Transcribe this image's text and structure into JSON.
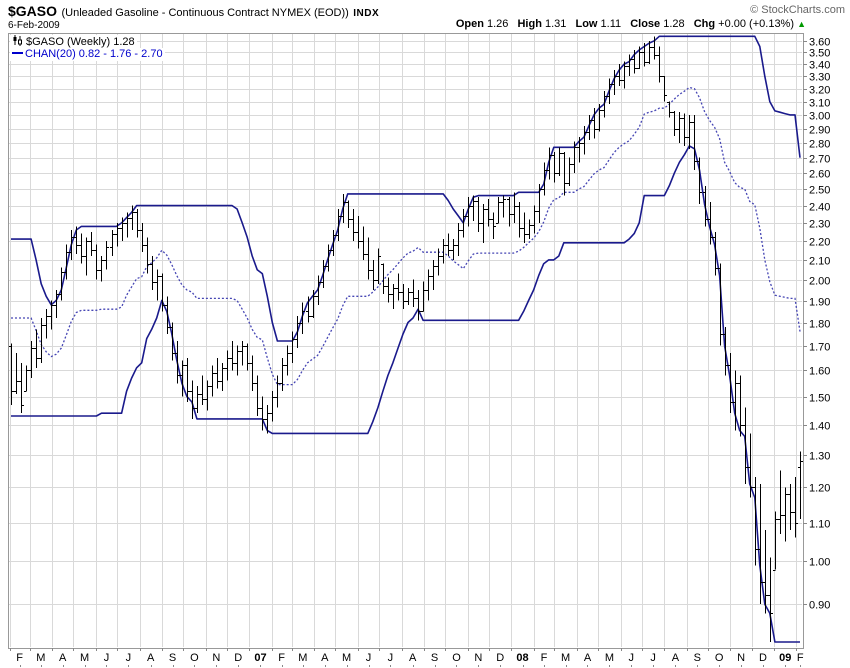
{
  "header": {
    "symbol": "$GASO",
    "desc": "(Unleaded Gasoline - Continuous Contract NYMEX (EOD))",
    "index": "INDX",
    "copyright": "© StockCharts.com",
    "date": "6-Feb-2009"
  },
  "quote": {
    "items": [
      {
        "label": "Open",
        "value": "1.26"
      },
      {
        "label": "High",
        "value": "1.31"
      },
      {
        "label": "Low",
        "value": "1.11"
      },
      {
        "label": "Close",
        "value": "1.28"
      },
      {
        "label": "Chg",
        "value": "+0.00 (+0.13%)"
      }
    ],
    "arrow": "▲",
    "arrow_color": "#009900"
  },
  "legend": {
    "series": "$GASO (Weekly) 1.28",
    "channel": "CHAN(20) 0.82 - 1.76 - 2.70",
    "channel_color": "#0000cc"
  },
  "chart_data": {
    "type": "ohlc-bar",
    "title": "$GASO (Unleaded Gasoline - Continuous Contract NYMEX (EOD)) INDX",
    "timeframe": "Weekly",
    "x_start": "Feb-2006",
    "x_end": "Feb-2009",
    "y_axis": {
      "scale": "log",
      "min": 0.808,
      "max": 3.67,
      "ticks": [
        "0.90",
        "1.00",
        "1.10",
        "1.20",
        "1.30",
        "1.40",
        "1.50",
        "1.60",
        "1.70",
        "1.80",
        "1.90",
        "2.00",
        "2.10",
        "2.20",
        "2.30",
        "2.40",
        "2.50",
        "2.60",
        "2.70",
        "2.80",
        "2.90",
        "3.00",
        "3.10",
        "3.20",
        "3.30",
        "3.40",
        "3.50",
        "3.60"
      ]
    },
    "x_axis": {
      "end_week": 157.8,
      "months": [
        {
          "label": "F",
          "week": -0.29
        },
        {
          "label": "M",
          "week": 3.71
        },
        {
          "label": "A",
          "week": 8.14
        },
        {
          "label": "M",
          "week": 12.43
        },
        {
          "label": "J",
          "week": 16.86
        },
        {
          "label": "J",
          "week": 21.14
        },
        {
          "label": "A",
          "week": 25.57
        },
        {
          "label": "S",
          "week": 30.0
        },
        {
          "label": "O",
          "week": 34.29
        },
        {
          "label": "N",
          "week": 38.71
        },
        {
          "label": "D",
          "week": 43.0
        },
        {
          "label": "07",
          "week": 47.43,
          "bold": true
        },
        {
          "label": "F",
          "week": 51.86
        },
        {
          "label": "M",
          "week": 55.86
        },
        {
          "label": "A",
          "week": 60.29
        },
        {
          "label": "M",
          "week": 64.57
        },
        {
          "label": "J",
          "week": 69.0
        },
        {
          "label": "J",
          "week": 73.29
        },
        {
          "label": "A",
          "week": 77.71
        },
        {
          "label": "S",
          "week": 82.14
        },
        {
          "label": "O",
          "week": 86.43
        },
        {
          "label": "N",
          "week": 90.86
        },
        {
          "label": "D",
          "week": 95.14
        },
        {
          "label": "08",
          "week": 99.57,
          "bold": true
        },
        {
          "label": "F",
          "week": 104.0
        },
        {
          "label": "M",
          "week": 108.14
        },
        {
          "label": "A",
          "week": 112.57
        },
        {
          "label": "M",
          "week": 116.86
        },
        {
          "label": "J",
          "week": 121.29
        },
        {
          "label": "J",
          "week": 125.57
        },
        {
          "label": "A",
          "week": 130.0
        },
        {
          "label": "S",
          "week": 134.43
        },
        {
          "label": "O",
          "week": 138.71
        },
        {
          "label": "N",
          "week": 143.14
        },
        {
          "label": "D",
          "week": 147.43
        },
        {
          "label": "09",
          "week": 151.86,
          "bold": true
        },
        {
          "label": "F",
          "week": 156.29
        }
      ]
    },
    "first_open": 1.7,
    "last_open": 1.26,
    "bars_hlc": [
      [
        1.71,
        1.47,
        1.52
      ],
      [
        1.67,
        1.51,
        1.56
      ],
      [
        1.63,
        1.44,
        1.47
      ],
      [
        1.62,
        1.52,
        1.6
      ],
      [
        1.72,
        1.57,
        1.69
      ],
      [
        1.77,
        1.61,
        1.65
      ],
      [
        1.82,
        1.63,
        1.79
      ],
      [
        1.86,
        1.73,
        1.83
      ],
      [
        1.9,
        1.77,
        1.88
      ],
      [
        1.95,
        1.82,
        1.93
      ],
      [
        2.06,
        1.9,
        2.04
      ],
      [
        2.18,
        2.0,
        2.14
      ],
      [
        2.26,
        2.1,
        2.22
      ],
      [
        2.28,
        2.13,
        2.18
      ],
      [
        2.24,
        2.08,
        2.12
      ],
      [
        2.22,
        2.02,
        2.2
      ],
      [
        2.25,
        2.12,
        2.15
      ],
      [
        2.18,
        2.0,
        2.05
      ],
      [
        2.12,
        1.99,
        2.1
      ],
      [
        2.2,
        2.05,
        2.17
      ],
      [
        2.26,
        2.12,
        2.24
      ],
      [
        2.3,
        2.17,
        2.27
      ],
      [
        2.33,
        2.2,
        2.3
      ],
      [
        2.36,
        2.22,
        2.33
      ],
      [
        2.4,
        2.26,
        2.36
      ],
      [
        2.38,
        2.22,
        2.26
      ],
      [
        2.3,
        2.14,
        2.18
      ],
      [
        2.22,
        2.03,
        2.08
      ],
      [
        2.12,
        1.95,
        1.99
      ],
      [
        2.05,
        1.9,
        2.02
      ],
      [
        2.03,
        1.85,
        1.88
      ],
      [
        1.92,
        1.75,
        1.78
      ],
      [
        1.8,
        1.64,
        1.67
      ],
      [
        1.72,
        1.55,
        1.58
      ],
      [
        1.64,
        1.5,
        1.62
      ],
      [
        1.65,
        1.48,
        1.52
      ],
      [
        1.56,
        1.42,
        1.46
      ],
      [
        1.54,
        1.44,
        1.51
      ],
      [
        1.58,
        1.47,
        1.49
      ],
      [
        1.56,
        1.45,
        1.54
      ],
      [
        1.62,
        1.5,
        1.59
      ],
      [
        1.65,
        1.53,
        1.56
      ],
      [
        1.63,
        1.52,
        1.61
      ],
      [
        1.68,
        1.56,
        1.65
      ],
      [
        1.72,
        1.6,
        1.63
      ],
      [
        1.7,
        1.58,
        1.68
      ],
      [
        1.72,
        1.62,
        1.7
      ],
      [
        1.71,
        1.6,
        1.63
      ],
      [
        1.66,
        1.52,
        1.55
      ],
      [
        1.58,
        1.43,
        1.46
      ],
      [
        1.5,
        1.38,
        1.42
      ],
      [
        1.47,
        1.37,
        1.44
      ],
      [
        1.52,
        1.41,
        1.5
      ],
      [
        1.58,
        1.46,
        1.55
      ],
      [
        1.65,
        1.52,
        1.62
      ],
      [
        1.7,
        1.58,
        1.67
      ],
      [
        1.76,
        1.63,
        1.73
      ],
      [
        1.83,
        1.69,
        1.8
      ],
      [
        1.89,
        1.75,
        1.85
      ],
      [
        1.92,
        1.8,
        1.83
      ],
      [
        1.95,
        1.82,
        1.92
      ],
      [
        2.02,
        1.88,
        1.99
      ],
      [
        2.1,
        1.96,
        2.07
      ],
      [
        2.18,
        2.04,
        2.15
      ],
      [
        2.26,
        2.12,
        2.23
      ],
      [
        2.38,
        2.2,
        2.34
      ],
      [
        2.47,
        2.3,
        2.42
      ],
      [
        2.43,
        2.27,
        2.32
      ],
      [
        2.38,
        2.2,
        2.25
      ],
      [
        2.34,
        2.16,
        2.2
      ],
      [
        2.28,
        2.1,
        2.13
      ],
      [
        2.22,
        2.0,
        2.05
      ],
      [
        2.1,
        1.95,
        2.0
      ],
      [
        2.16,
        1.98,
        2.12
      ],
      [
        2.08,
        1.93,
        1.97
      ],
      [
        2.01,
        1.89,
        1.93
      ],
      [
        1.98,
        1.86,
        1.96
      ],
      [
        2.03,
        1.9,
        1.94
      ],
      [
        1.98,
        1.86,
        1.9
      ],
      [
        1.96,
        1.88,
        1.94
      ],
      [
        2.0,
        1.87,
        1.91
      ],
      [
        1.95,
        1.81,
        1.85
      ],
      [
        1.99,
        1.85,
        1.95
      ],
      [
        2.05,
        1.9,
        2.02
      ],
      [
        2.1,
        1.95,
        2.07
      ],
      [
        2.16,
        2.02,
        2.12
      ],
      [
        2.21,
        2.08,
        2.18
      ],
      [
        2.24,
        2.12,
        2.15
      ],
      [
        2.21,
        2.1,
        2.18
      ],
      [
        2.3,
        2.12,
        2.26
      ],
      [
        2.38,
        2.22,
        2.34
      ],
      [
        2.45,
        2.28,
        2.4
      ],
      [
        2.46,
        2.31,
        2.43
      ],
      [
        2.45,
        2.25,
        2.3
      ],
      [
        2.41,
        2.19,
        2.38
      ],
      [
        2.44,
        2.28,
        2.32
      ],
      [
        2.36,
        2.21,
        2.28
      ],
      [
        2.45,
        2.3,
        2.42
      ],
      [
        2.46,
        2.33,
        2.44
      ],
      [
        2.45,
        2.28,
        2.35
      ],
      [
        2.48,
        2.3,
        2.4
      ],
      [
        2.42,
        2.22,
        2.27
      ],
      [
        2.36,
        2.19,
        2.24
      ],
      [
        2.32,
        2.21,
        2.29
      ],
      [
        2.4,
        2.24,
        2.37
      ],
      [
        2.53,
        2.3,
        2.5
      ],
      [
        2.67,
        2.46,
        2.62
      ],
      [
        2.77,
        2.56,
        2.72
      ],
      [
        2.74,
        2.54,
        2.6
      ],
      [
        2.77,
        2.58,
        2.73
      ],
      [
        2.74,
        2.46,
        2.54
      ],
      [
        2.7,
        2.52,
        2.66
      ],
      [
        2.81,
        2.6,
        2.77
      ],
      [
        2.84,
        2.67,
        2.8
      ],
      [
        2.92,
        2.72,
        2.88
      ],
      [
        3.0,
        2.82,
        2.96
      ],
      [
        3.05,
        2.83,
        2.9
      ],
      [
        3.08,
        2.88,
        3.04
      ],
      [
        3.18,
        2.98,
        3.14
      ],
      [
        3.28,
        3.08,
        3.24
      ],
      [
        3.35,
        3.15,
        3.3
      ],
      [
        3.4,
        3.22,
        3.27
      ],
      [
        3.42,
        3.2,
        3.38
      ],
      [
        3.48,
        3.3,
        3.44
      ],
      [
        3.52,
        3.32,
        3.37
      ],
      [
        3.55,
        3.36,
        3.5
      ],
      [
        3.58,
        3.38,
        3.42
      ],
      [
        3.6,
        3.4,
        3.55
      ],
      [
        3.64,
        3.44,
        3.48
      ],
      [
        3.55,
        3.25,
        3.3
      ],
      [
        3.3,
        3.1,
        3.15
      ],
      [
        3.1,
        2.98,
        3.02
      ],
      [
        3.03,
        2.85,
        2.9
      ],
      [
        3.02,
        2.8,
        2.98
      ],
      [
        3.01,
        2.78,
        2.84
      ],
      [
        3.0,
        2.76,
        2.95
      ],
      [
        3.0,
        2.62,
        2.68
      ],
      [
        2.7,
        2.41,
        2.48
      ],
      [
        2.52,
        2.28,
        2.32
      ],
      [
        2.42,
        2.18,
        2.22
      ],
      [
        2.25,
        2.02,
        2.06
      ],
      [
        2.08,
        1.7,
        1.75
      ],
      [
        1.78,
        1.58,
        1.62
      ],
      [
        1.67,
        1.44,
        1.48
      ],
      [
        1.6,
        1.38,
        1.55
      ],
      [
        1.58,
        1.36,
        1.4
      ],
      [
        1.46,
        1.21,
        1.26
      ],
      [
        1.37,
        1.17,
        1.2
      ],
      [
        1.23,
        0.99,
        1.03
      ],
      [
        1.21,
        0.9,
        0.95
      ],
      [
        1.08,
        0.88,
        0.92
      ],
      [
        1.01,
        0.82,
        0.88
      ],
      [
        1.13,
        0.98,
        1.11
      ],
      [
        1.25,
        1.07,
        1.12
      ],
      [
        1.2,
        1.05,
        1.18
      ],
      [
        1.21,
        1.08,
        1.13
      ],
      [
        1.23,
        1.06,
        1.1
      ],
      [
        1.31,
        1.11,
        1.28
      ]
    ],
    "overlays": {
      "price_channel": {
        "period": 20,
        "current_upper": 2.7,
        "current_middle": 1.76,
        "current_lower": 0.82,
        "pre_highs": [
          1.9,
          1.95,
          2.0,
          2.1,
          2.21,
          2.1,
          1.98,
          1.92,
          1.88,
          1.85,
          1.82,
          1.8,
          1.78,
          1.76,
          1.74,
          1.72,
          1.7,
          1.68,
          1.66,
          1.68
        ],
        "pre_lows": [
          1.7,
          1.72,
          1.75,
          1.8,
          1.85,
          1.8,
          1.72,
          1.65,
          1.6,
          1.55,
          1.52,
          1.5,
          1.48,
          1.47,
          1.46,
          1.45,
          1.44,
          1.43,
          1.45,
          1.48
        ]
      }
    },
    "colors": {
      "bars": "#000000",
      "channel_solid": "#1a1a8c",
      "channel_dotted": "#4646b4",
      "grid": "#d9d9d9",
      "frame": "#999999",
      "tick": "#888888"
    }
  }
}
